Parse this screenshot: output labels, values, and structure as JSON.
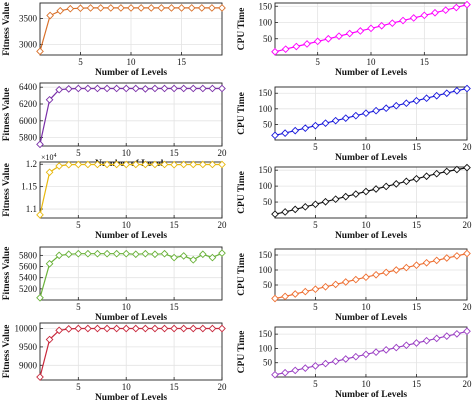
{
  "chart_data": [
    {
      "type": "line",
      "color": "#d9702a",
      "marker": "diamond",
      "ylabel": "Fitness Value",
      "xlabel": "Number of Levels",
      "xlim": [
        1,
        19
      ],
      "ylim": [
        2800,
        3800
      ],
      "xticks": [
        5,
        10,
        15
      ],
      "yticks": [
        3000,
        3500
      ],
      "yexp": "",
      "x": [
        1,
        2,
        3,
        4,
        5,
        6,
        7,
        8,
        9,
        10,
        11,
        12,
        13,
        14,
        15,
        16,
        17,
        18,
        19
      ],
      "values": [
        2870,
        3560,
        3650,
        3690,
        3700,
        3705,
        3705,
        3705,
        3705,
        3705,
        3705,
        3705,
        3705,
        3705,
        3705,
        3705,
        3705,
        3705,
        3705
      ]
    },
    {
      "type": "line",
      "color": "#ff00ff",
      "marker": "diamond",
      "ylabel": "CPU Time",
      "xlabel": "Number of Levels",
      "xlim": [
        1,
        19
      ],
      "ylim": [
        0,
        160
      ],
      "xticks": [
        5,
        10,
        15
      ],
      "yticks": [
        50,
        100,
        150
      ],
      "yexp": "",
      "x": [
        1,
        2,
        3,
        4,
        5,
        6,
        7,
        8,
        9,
        10,
        11,
        12,
        13,
        14,
        15,
        16,
        17,
        18,
        19
      ],
      "values": [
        10,
        18,
        26,
        34,
        42,
        50,
        58,
        66,
        74,
        82,
        90,
        98,
        106,
        114,
        122,
        130,
        138,
        146,
        155
      ]
    },
    {
      "type": "line",
      "color": "#7a2fa8",
      "marker": "diamond",
      "ylabel": "Fitness Value",
      "xlabel": "Number of Levels",
      "xlim": [
        1,
        20
      ],
      "ylim": [
        5700,
        6450
      ],
      "xticks": [
        5,
        10,
        15,
        20
      ],
      "yticks": [
        5800,
        6000,
        6200,
        6400
      ],
      "yexp": "",
      "x": [
        1,
        2,
        3,
        4,
        5,
        6,
        7,
        8,
        9,
        10,
        11,
        12,
        13,
        14,
        15,
        16,
        17,
        18,
        19,
        20
      ],
      "values": [
        5720,
        6250,
        6370,
        6380,
        6385,
        6385,
        6385,
        6385,
        6385,
        6385,
        6385,
        6380,
        6385,
        6385,
        6385,
        6385,
        6385,
        6385,
        6385,
        6385
      ]
    },
    {
      "type": "line",
      "color": "#1a1adc",
      "marker": "diamond",
      "ylabel": "CPU Time",
      "xlabel": "Number of Levels",
      "xlim": [
        1,
        20
      ],
      "ylim": [
        0,
        170
      ],
      "xticks": [
        5,
        10,
        15,
        20
      ],
      "yticks": [
        50,
        100,
        150
      ],
      "yexp": "",
      "x": [
        1,
        2,
        3,
        4,
        5,
        6,
        7,
        8,
        9,
        10,
        11,
        12,
        13,
        14,
        15,
        16,
        17,
        18,
        19,
        20
      ],
      "values": [
        15,
        22,
        30,
        38,
        46,
        54,
        62,
        70,
        78,
        86,
        94,
        102,
        110,
        118,
        126,
        134,
        142,
        150,
        158,
        165
      ]
    },
    {
      "type": "line",
      "color": "#e8b80e",
      "marker": "diamond",
      "ylabel": "Fitness Value",
      "xlabel": "Number of Levels",
      "xlim": [
        1,
        20
      ],
      "ylim": [
        10800,
        12050
      ],
      "xticks": [
        5,
        10,
        15,
        20
      ],
      "yticks": [
        11000,
        11500,
        12000
      ],
      "ytick_labels": [
        "1.1",
        "1.15",
        "1.2"
      ],
      "yexp": "4",
      "x": [
        1,
        2,
        3,
        4,
        5,
        6,
        7,
        8,
        9,
        10,
        11,
        12,
        13,
        14,
        15,
        16,
        17,
        18,
        19,
        20
      ],
      "values": [
        10870,
        11820,
        11960,
        11990,
        11995,
        11995,
        11995,
        11995,
        11995,
        11995,
        11995,
        11995,
        11995,
        11995,
        11990,
        11995,
        11995,
        11995,
        11995,
        11995
      ]
    },
    {
      "type": "line",
      "color": "#111111",
      "marker": "diamond",
      "ylabel": "CPU Time",
      "xlabel": "Number of Levels",
      "xlim": [
        1,
        20
      ],
      "ylim": [
        0,
        160
      ],
      "xticks": [
        5,
        10,
        15,
        20
      ],
      "yticks": [
        50,
        100,
        150
      ],
      "yexp": "",
      "x": [
        1,
        2,
        3,
        4,
        5,
        6,
        7,
        8,
        9,
        10,
        11,
        12,
        13,
        14,
        15,
        16,
        17,
        18,
        19,
        20
      ],
      "values": [
        12,
        19,
        27,
        35,
        43,
        51,
        59,
        67,
        75,
        83,
        91,
        99,
        107,
        115,
        123,
        131,
        139,
        146,
        152,
        158
      ]
    },
    {
      "type": "line",
      "color": "#6ab23a",
      "marker": "diamond",
      "ylabel": "Fitness Value",
      "xlabel": "Number of Levels",
      "xlim": [
        1,
        20
      ],
      "ylim": [
        5000,
        5950
      ],
      "xticks": [
        5,
        10,
        15
      ],
      "yticks": [
        5200,
        5400,
        5600,
        5800
      ],
      "yexp": "",
      "x": [
        1,
        2,
        3,
        4,
        5,
        6,
        7,
        8,
        9,
        10,
        11,
        12,
        13,
        14,
        15,
        16,
        17,
        18,
        19,
        20
      ],
      "values": [
        5040,
        5650,
        5800,
        5820,
        5830,
        5830,
        5830,
        5830,
        5830,
        5830,
        5820,
        5830,
        5820,
        5830,
        5760,
        5790,
        5720,
        5820,
        5760,
        5840
      ]
    },
    {
      "type": "line",
      "color": "#ee7033",
      "marker": "diamond",
      "ylabel": "CPU Time",
      "xlabel": "Number of Levels",
      "xlim": [
        1,
        20
      ],
      "ylim": [
        0,
        170
      ],
      "xticks": [
        5,
        10,
        15,
        20
      ],
      "yticks": [
        50,
        100,
        150
      ],
      "yexp": "",
      "x": [
        1,
        2,
        3,
        4,
        5,
        6,
        7,
        8,
        9,
        10,
        11,
        12,
        13,
        14,
        15,
        16,
        17,
        18,
        19,
        20
      ],
      "values": [
        5,
        12,
        20,
        28,
        36,
        44,
        52,
        60,
        68,
        76,
        84,
        92,
        100,
        108,
        116,
        124,
        132,
        140,
        147,
        155
      ]
    },
    {
      "type": "line",
      "color": "#c8283c",
      "marker": "diamond",
      "ylabel": "Fitness Value",
      "xlabel": "Number of Levels",
      "xlim": [
        1,
        20
      ],
      "ylim": [
        8600,
        10150
      ],
      "xticks": [
        5,
        10,
        15,
        20
      ],
      "yticks": [
        9000,
        9500,
        10000
      ],
      "yexp": "",
      "x": [
        1,
        2,
        3,
        4,
        5,
        6,
        7,
        8,
        9,
        10,
        11,
        12,
        13,
        14,
        15,
        16,
        17,
        18,
        19,
        20
      ],
      "values": [
        8680,
        9700,
        9950,
        9990,
        10000,
        10000,
        10000,
        10000,
        10000,
        10000,
        10000,
        10000,
        10000,
        10000,
        10000,
        10000,
        10000,
        10000,
        10000,
        10000
      ]
    },
    {
      "type": "line",
      "color": "#9b3fc4",
      "marker": "diamond",
      "ylabel": "CPU Time",
      "xlabel": "Number of Levels",
      "xlim": [
        1,
        20
      ],
      "ylim": [
        0,
        175
      ],
      "xticks": [
        5,
        10,
        15,
        20
      ],
      "yticks": [
        50,
        100,
        150
      ],
      "yexp": "",
      "x": [
        1,
        2,
        3,
        4,
        5,
        6,
        7,
        8,
        9,
        10,
        11,
        12,
        13,
        14,
        15,
        16,
        17,
        18,
        19,
        20
      ],
      "values": [
        8,
        15,
        23,
        31,
        39,
        47,
        55,
        63,
        71,
        79,
        87,
        95,
        103,
        111,
        119,
        127,
        135,
        143,
        151,
        160
      ]
    }
  ]
}
